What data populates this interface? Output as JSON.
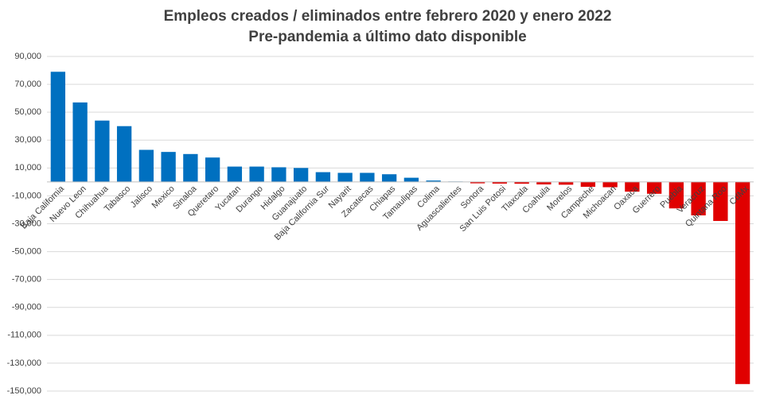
{
  "chart_data": {
    "type": "bar",
    "title": "Empleos creados / eliminados entre febrero 2020 y enero 2022",
    "subtitle": "Pre-pandemia a último dato disponible",
    "categories": [
      "Baja California",
      "Nuevo Leon",
      "Chihuahua",
      "Tabasco",
      "Jalisco",
      "Mexico",
      "Sinaloa",
      "Queretaro",
      "Yucatan",
      "Durango",
      "Hidalgo",
      "Guanajuato",
      "Baja California Sur",
      "Nayarit",
      "Zacatecas",
      "Chiapas",
      "Tamaulipas",
      "Colima",
      "Aguascalientes",
      "Sonora",
      "San Luis Potosi",
      "Tlaxcala",
      "Coahuila",
      "Morelos",
      "Campeche",
      "Michoacan",
      "Oaxaca",
      "Guerrero",
      "Puebla",
      "Veracruz",
      "Quintana Roo",
      "CdMx"
    ],
    "values": [
      79000,
      57000,
      44000,
      40000,
      23000,
      21500,
      20000,
      17500,
      11000,
      11000,
      10500,
      10000,
      7000,
      6500,
      6500,
      5500,
      3000,
      1000,
      300,
      -1000,
      -1200,
      -1300,
      -1800,
      -2000,
      -3500,
      -3800,
      -7000,
      -8500,
      -19000,
      -24000,
      -28000,
      -145000
    ],
    "positive_color": "#0070c0",
    "negative_color": "#e00000",
    "ylim": [
      -150000,
      90000
    ],
    "yticks": [
      {
        "value": 90000,
        "label": "90,000"
      },
      {
        "value": 70000,
        "label": "70,000"
      },
      {
        "value": 50000,
        "label": "50,000"
      },
      {
        "value": 30000,
        "label": "30,000"
      },
      {
        "value": 10000,
        "label": "10,000"
      },
      {
        "value": -10000,
        "label": "-10,000"
      },
      {
        "value": -30000,
        "label": "-30,000"
      },
      {
        "value": -50000,
        "label": "-50,000"
      },
      {
        "value": -70000,
        "label": "-70,000"
      },
      {
        "value": -90000,
        "label": "-90,000"
      },
      {
        "value": -110000,
        "label": "-110,000"
      },
      {
        "value": -130000,
        "label": "-130,000"
      },
      {
        "value": -150000,
        "label": "-150,000"
      }
    ],
    "grid": true
  }
}
